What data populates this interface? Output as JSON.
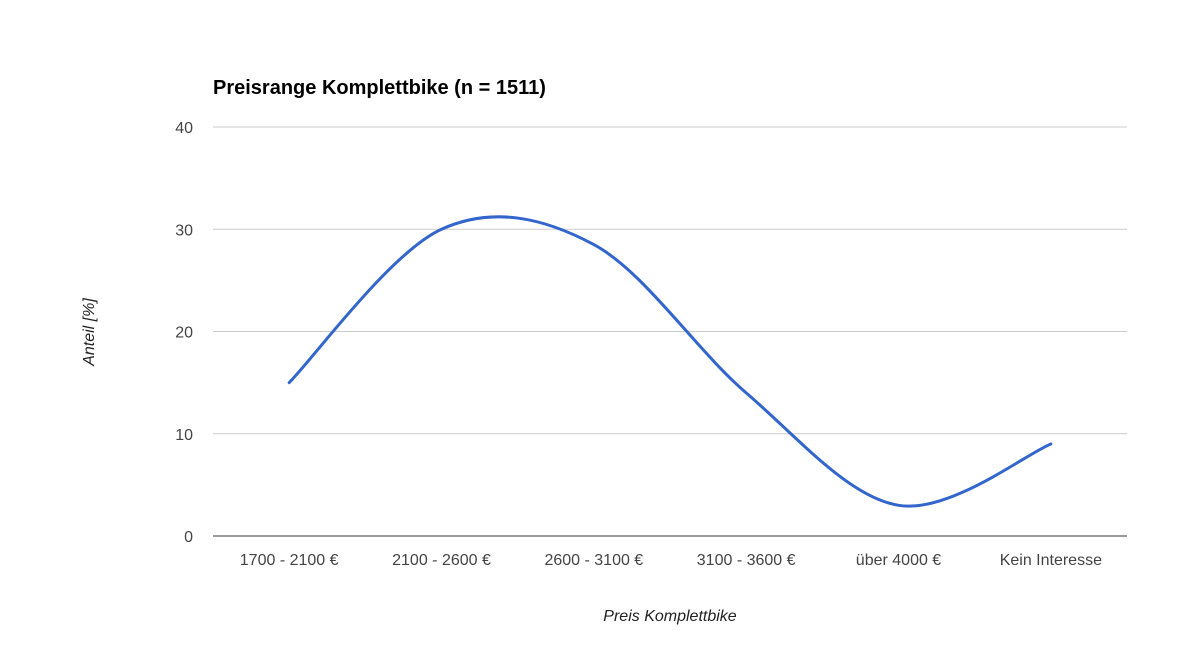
{
  "chart_data": {
    "type": "line",
    "title": "Preisrange Komplettbike (n = 1511)",
    "xlabel": "Preis Komplettbike",
    "ylabel": "Anteil [%]",
    "categories": [
      "1700 - 2100 €",
      "2100 - 2600 €",
      "2600 - 3100 €",
      "3100 - 3600 €",
      "über 4000 €",
      "Kein Interesse"
    ],
    "series": [
      {
        "values": [
          15,
          30,
          28.5,
          14,
          3,
          9
        ],
        "color": "#3366cc"
      }
    ],
    "ylim": [
      0,
      40
    ],
    "yticks": [
      "0",
      "10",
      "20",
      "30",
      "40"
    ],
    "grid": true,
    "legend": "none",
    "smooth": true
  }
}
